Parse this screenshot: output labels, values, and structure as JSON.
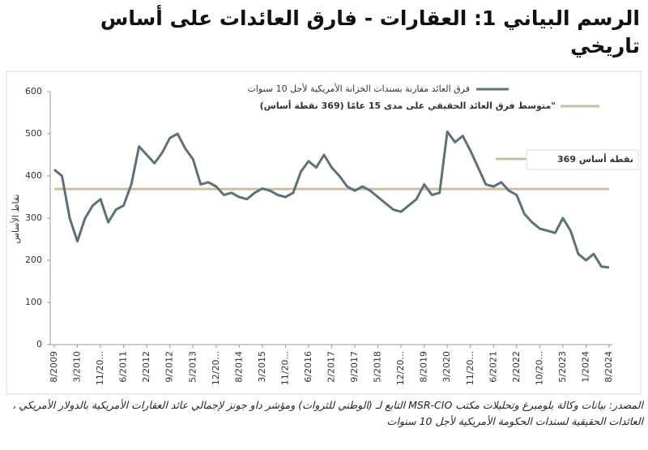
{
  "chart_data": {
    "type": "line",
    "title": "الرسم البياني 1: العقارات - فارق العائدات على أساس تاريخي",
    "y_label": "نقاط الأساس",
    "source": "المصدر: بيانات وكالة بلومبرغ وتحليلات مكتب MSR-CIO التابع لـ (الوطني للثروات) ومؤشر داو جونز لإجمالي عائد العقارات الأمريكية بالدولار الأمريكي ، العائدات الحقيقية لسندات الحكومة الأمريكية لأجل 10 سنوات",
    "categories": [
      "8/2009",
      null,
      null,
      "3/2010",
      null,
      null,
      "11/20...",
      null,
      null,
      "6/2011",
      null,
      null,
      "2/2012",
      null,
      null,
      "9/2012",
      null,
      null,
      "5/2013",
      null,
      null,
      "12/20...",
      null,
      null,
      "8/2014",
      null,
      null,
      "3/2015",
      null,
      null,
      "11/20...",
      null,
      null,
      "6/2016",
      null,
      null,
      "2/2017",
      null,
      null,
      "9/2017",
      null,
      null,
      "5/2018",
      null,
      null,
      "12/20...",
      null,
      null,
      "8/2019",
      null,
      null,
      "3/2020",
      null,
      null,
      "11/20...",
      null,
      null,
      "6/2021",
      null,
      null,
      "2/2022",
      null,
      null,
      "10/20...",
      null,
      null,
      "5/2023",
      null,
      null,
      "1/2024",
      null,
      null,
      "8/2024"
    ],
    "series": [
      {
        "name": "فرق العائد مقارنة بسندات الخزانة الأمريكية لأجل 10 سنوات",
        "color": "#5a7278",
        "values": [
          415,
          400,
          300,
          245,
          300,
          330,
          345,
          290,
          320,
          330,
          380,
          470,
          450,
          430,
          455,
          490,
          500,
          465,
          440,
          380,
          385,
          375,
          355,
          360,
          350,
          345,
          360,
          370,
          365,
          355,
          350,
          360,
          410,
          435,
          420,
          450,
          420,
          400,
          375,
          365,
          375,
          365,
          350,
          335,
          320,
          315,
          330,
          345,
          380,
          355,
          360,
          505,
          480,
          495,
          460,
          420,
          380,
          375,
          385,
          365,
          355,
          310,
          290,
          275,
          270,
          265,
          300,
          270,
          215,
          200,
          215,
          185,
          183
        ]
      }
    ],
    "reference_line": {
      "name": "متوسط فرق العائد الحقيقي على مدى 15 عامًا (369 نقطة أساس)\"",
      "value": 369,
      "color": "#c9bda6",
      "label": "369 نقطة أساس"
    },
    "ylim": [
      0,
      600
    ],
    "yticks": [
      0,
      100,
      200,
      300,
      400,
      500,
      600
    ]
  }
}
